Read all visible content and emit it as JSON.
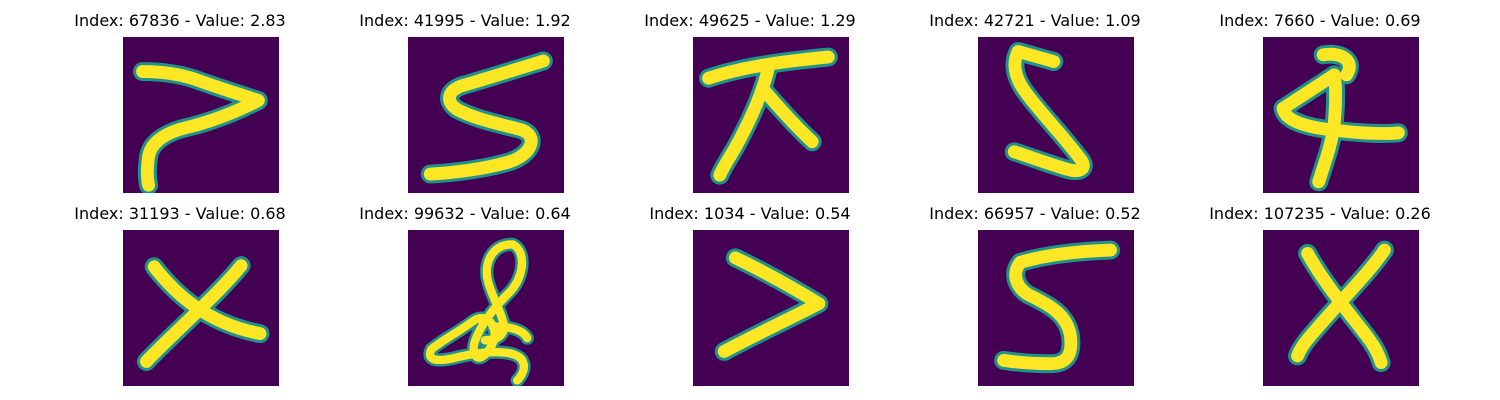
{
  "figure": {
    "background_color": "#ffffff",
    "image_background_color": "#440154",
    "stroke_core_color": "#fde725",
    "stroke_edge_color": "#21918c",
    "colormap": "viridis",
    "rows": 2,
    "columns": 5,
    "panels": [
      {
        "title": "Index: 67836 - Value: 2.83",
        "index": 67836,
        "value": 2.83,
        "shape": "reversed-z-like stroke"
      },
      {
        "title": "Index: 41995 - Value: 1.92",
        "index": 41995,
        "value": 1.92,
        "shape": "S / 5 like stroke"
      },
      {
        "title": "Index: 49625 - Value: 1.29",
        "index": 49625,
        "value": 1.29,
        "shape": "crossed stroke"
      },
      {
        "title": "Index: 42721 - Value: 1.09",
        "index": 42721,
        "value": 1.09,
        "shape": "5 like stroke"
      },
      {
        "title": "Index: 7660 - Value: 0.69",
        "index": 7660,
        "value": 0.69,
        "shape": "4 like stroke"
      },
      {
        "title": "Index: 31193 - Value: 0.68",
        "index": 31193,
        "value": 0.68,
        "shape": "X"
      },
      {
        "title": "Index: 99632 - Value: 0.64",
        "index": 99632,
        "value": 0.64,
        "shape": "loop scribble"
      },
      {
        "title": "Index: 1034 - Value: 0.54",
        "index": 1034,
        "value": 0.54,
        "shape": "greater-than / chevron"
      },
      {
        "title": "Index: 66957 - Value: 0.52",
        "index": 66957,
        "value": 0.52,
        "shape": "5 like stroke"
      },
      {
        "title": "Index: 107235 - Value: 0.26",
        "index": 107235,
        "value": 0.26,
        "shape": "X"
      }
    ]
  }
}
